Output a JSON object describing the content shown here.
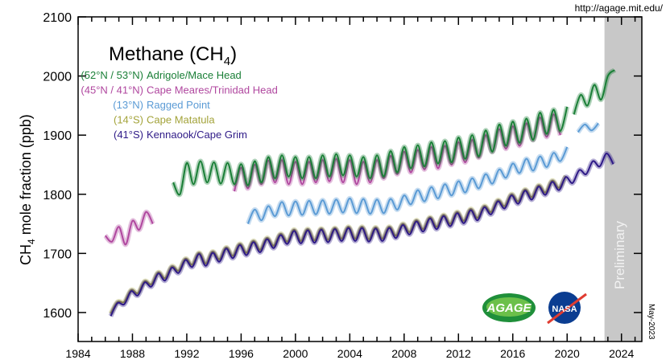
{
  "source_url": "http://agage.mit.edu/",
  "date_stamp": "May-2023",
  "preliminary_label": "Preliminary",
  "logos": {
    "agage": "AGAGE",
    "nasa": "NASA"
  },
  "chart_data": {
    "type": "line",
    "title": "Methane (CH",
    "title_sub": "4",
    "title_end": ")",
    "xlabel": "",
    "ylabel_main": "CH",
    "ylabel_sub": "4",
    "ylabel_end": " mole fraction (ppb)",
    "xlim": [
      1984,
      2025.5
    ],
    "ylim": [
      1551,
      2100
    ],
    "xticks": [
      1984,
      1988,
      1992,
      1996,
      2000,
      2004,
      2008,
      2012,
      2016,
      2020,
      2024
    ],
    "yticks": [
      1600,
      1700,
      1800,
      1900,
      2000,
      2100
    ],
    "preliminary_from": 2022.75,
    "legend": [
      {
        "lat": "(52°N / 53°N)",
        "name": "Adrigole/Mace Head",
        "color": "#1a7f37"
      },
      {
        "lat": "(45°N / 41°N)",
        "name": "Cape Meares/Trinidad Head",
        "color": "#b0479f"
      },
      {
        "lat": "(13°N)",
        "name": "Ragged Point",
        "color": "#5b9bd5"
      },
      {
        "lat": "(14°S)",
        "name": "Cape Matatula",
        "color": "#a3a33a"
      },
      {
        "lat": "(41°S)",
        "name": "Kennaook/Cape Grim",
        "color": "#2e1a87"
      }
    ],
    "series": [
      {
        "name": "Cape Meares/Trinidad Head",
        "color": "#b0479f",
        "step": 0.5,
        "segments": [
          {
            "start": 1986.0,
            "values": [
              1730,
              1720,
              1745,
              1715,
              1755,
              1740,
              1770,
              1750
            ]
          },
          {
            "start": 1995.5,
            "values": [
              1805,
              1845,
              1810,
              1850,
              1817,
              1857,
              1820,
              1858,
              1817,
              1855,
              1817,
              1855,
              1820,
              1858,
              1822,
              1860,
              1820,
              1858,
              1817,
              1855,
              1820,
              1858,
              1827,
              1865,
              1834,
              1872,
              1837,
              1875,
              1842,
              1880,
              1844,
              1882,
              1850,
              1888,
              1854,
              1892,
              1862,
              1900,
              1872,
              1910,
              1877,
              1915,
              1882,
              1920,
              1892,
              1930,
              1897,
              1935,
              1900
            ]
          }
        ]
      },
      {
        "name": "Adrigole/Mace Head",
        "color": "#1a7f37",
        "step": 0.5,
        "segments": [
          {
            "start": 1991.0,
            "values": [
              1820,
              1800,
              1853,
              1817,
              1856,
              1820,
              1854,
              1818,
              1853,
              1817,
              1851,
              1815,
              1856,
              1820,
              1863,
              1827,
              1866,
              1830,
              1863,
              1827,
              1863,
              1827,
              1866,
              1830,
              1868,
              1832,
              1866,
              1830,
              1863,
              1827,
              1866,
              1830,
              1873,
              1837,
              1880,
              1844,
              1883,
              1847,
              1888,
              1852,
              1890,
              1854,
              1896,
              1860,
              1900,
              1864,
              1908,
              1872,
              1918,
              1882,
              1923,
              1887,
              1928,
              1892,
              1938,
              1902,
              1943,
              1907,
              1948
            ]
          },
          {
            "start": 2020.5,
            "values": [
              1935,
              1968,
              1950,
              1985,
              1960,
              2000,
              2010
            ]
          }
        ]
      },
      {
        "name": "Ragged Point",
        "color": "#5b9bd5",
        "step": 0.5,
        "segments": [
          {
            "start": 1996.5,
            "values": [
              1750,
              1774,
              1756,
              1780,
              1763,
              1787,
              1764,
              1788,
              1765,
              1789,
              1766,
              1790,
              1767,
              1791,
              1769,
              1793,
              1768,
              1792,
              1767,
              1791,
              1768,
              1792,
              1774,
              1798,
              1783,
              1807,
              1788,
              1812,
              1793,
              1817,
              1798,
              1822,
              1803,
              1827,
              1810,
              1834,
              1818,
              1842,
              1828,
              1852,
              1836,
              1860,
              1840,
              1864,
              1846,
              1870,
              1856,
              1880
            ]
          },
          {
            "start": 2020.8,
            "values": [
              1905,
              1918,
              1908,
              1920
            ]
          }
        ]
      },
      {
        "name": "Cape Matatula",
        "color": "#a3a33a",
        "step": 0.5,
        "segments": [
          {
            "start": 1986.4,
            "values": [
              1598,
              1618,
              1618,
              1638,
              1633,
              1653,
              1648,
              1668,
              1658,
              1678,
              1671,
              1691,
              1681,
              1701,
              1683,
              1703,
              1690,
              1710,
              1696,
              1716,
              1701,
              1721,
              1706,
              1726,
              1713,
              1733,
              1720,
              1740,
              1721,
              1741,
              1722,
              1742,
              1723,
              1743,
              1725,
              1745,
              1725,
              1745,
              1724,
              1744,
              1725,
              1745,
              1730,
              1750,
              1736,
              1756,
              1741,
              1761,
              1745,
              1765,
              1750,
              1770,
              1755,
              1775,
              1760,
              1780,
              1770,
              1790,
              1780,
              1800,
              1788,
              1808,
              1795,
              1815,
              1803,
              1823,
              1811,
              1831
            ]
          }
        ]
      },
      {
        "name": "Kennaook/Cape Grim",
        "color": "#2e1a87",
        "step": 0.5,
        "segments": [
          {
            "start": 1986.4,
            "values": [
              1594,
              1616,
              1614,
              1636,
              1629,
              1651,
              1644,
              1666,
              1654,
              1676,
              1667,
              1689,
              1677,
              1699,
              1679,
              1701,
              1686,
              1708,
              1692,
              1714,
              1697,
              1719,
              1702,
              1724,
              1709,
              1731,
              1716,
              1738,
              1717,
              1739,
              1718,
              1740,
              1719,
              1741,
              1721,
              1743,
              1721,
              1743,
              1720,
              1742,
              1721,
              1743,
              1726,
              1748,
              1732,
              1754,
              1737,
              1759,
              1741,
              1763,
              1746,
              1768,
              1751,
              1773,
              1756,
              1778,
              1766,
              1788,
              1776,
              1798,
              1784,
              1806,
              1791,
              1813,
              1799,
              1821,
              1807,
              1829,
              1819,
              1841,
              1834,
              1856,
              1847,
              1869,
              1851
            ]
          }
        ]
      }
    ]
  }
}
